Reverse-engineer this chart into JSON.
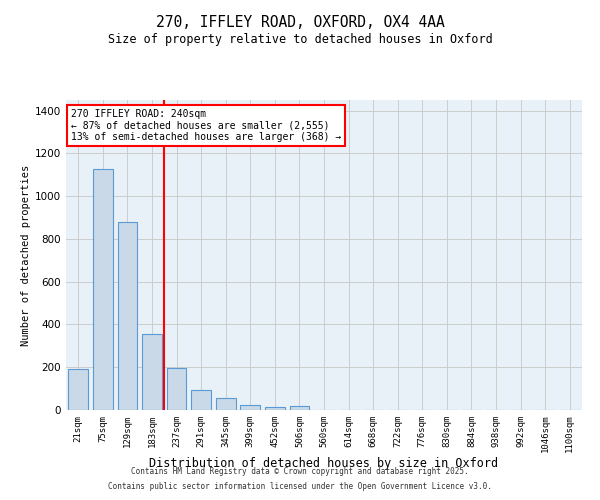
{
  "title_line1": "270, IFFLEY ROAD, OXFORD, OX4 4AA",
  "title_line2": "Size of property relative to detached houses in Oxford",
  "xlabel": "Distribution of detached houses by size in Oxford",
  "ylabel": "Number of detached properties",
  "categories": [
    "21sqm",
    "75sqm",
    "129sqm",
    "183sqm",
    "237sqm",
    "291sqm",
    "345sqm",
    "399sqm",
    "452sqm",
    "506sqm",
    "560sqm",
    "614sqm",
    "668sqm",
    "722sqm",
    "776sqm",
    "830sqm",
    "884sqm",
    "938sqm",
    "992sqm",
    "1046sqm",
    "1100sqm"
  ],
  "values": [
    190,
    1125,
    880,
    355,
    198,
    95,
    55,
    25,
    15,
    20,
    0,
    0,
    0,
    0,
    0,
    0,
    0,
    0,
    0,
    0,
    0
  ],
  "bar_color": "#c9d9e8",
  "bar_edge_color": "#5b9bd5",
  "vline_x": 3.5,
  "vline_color": "red",
  "annotation_text": "270 IFFLEY ROAD: 240sqm\n← 87% of detached houses are smaller (2,555)\n13% of semi-detached houses are larger (368) →",
  "annotation_box_color": "red",
  "annotation_text_color": "black",
  "ylim": [
    0,
    1450
  ],
  "yticks": [
    0,
    200,
    400,
    600,
    800,
    1000,
    1200,
    1400
  ],
  "grid_color": "#cccccc",
  "bg_color": "#e8f0f8",
  "footnote1": "Contains HM Land Registry data © Crown copyright and database right 2025.",
  "footnote2": "Contains public sector information licensed under the Open Government Licence v3.0."
}
